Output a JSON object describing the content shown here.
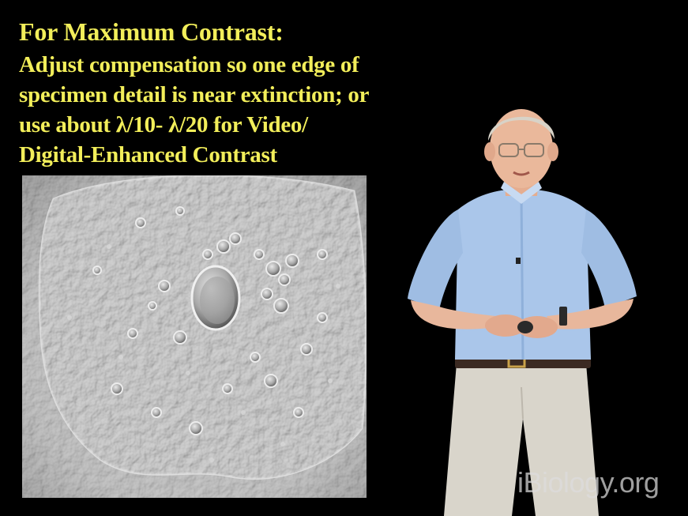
{
  "slide": {
    "title": "For Maximum Contrast:",
    "lines": [
      "Adjust compensation so one edge  of",
      "specimen detail is near extinction; or",
      "use about λ/10- λ/20  for Video/",
      "Digital-Enhanced Contrast"
    ]
  },
  "watermark": "iBiology.org",
  "colors": {
    "background": "#000000",
    "text": "#f2ee5a"
  }
}
